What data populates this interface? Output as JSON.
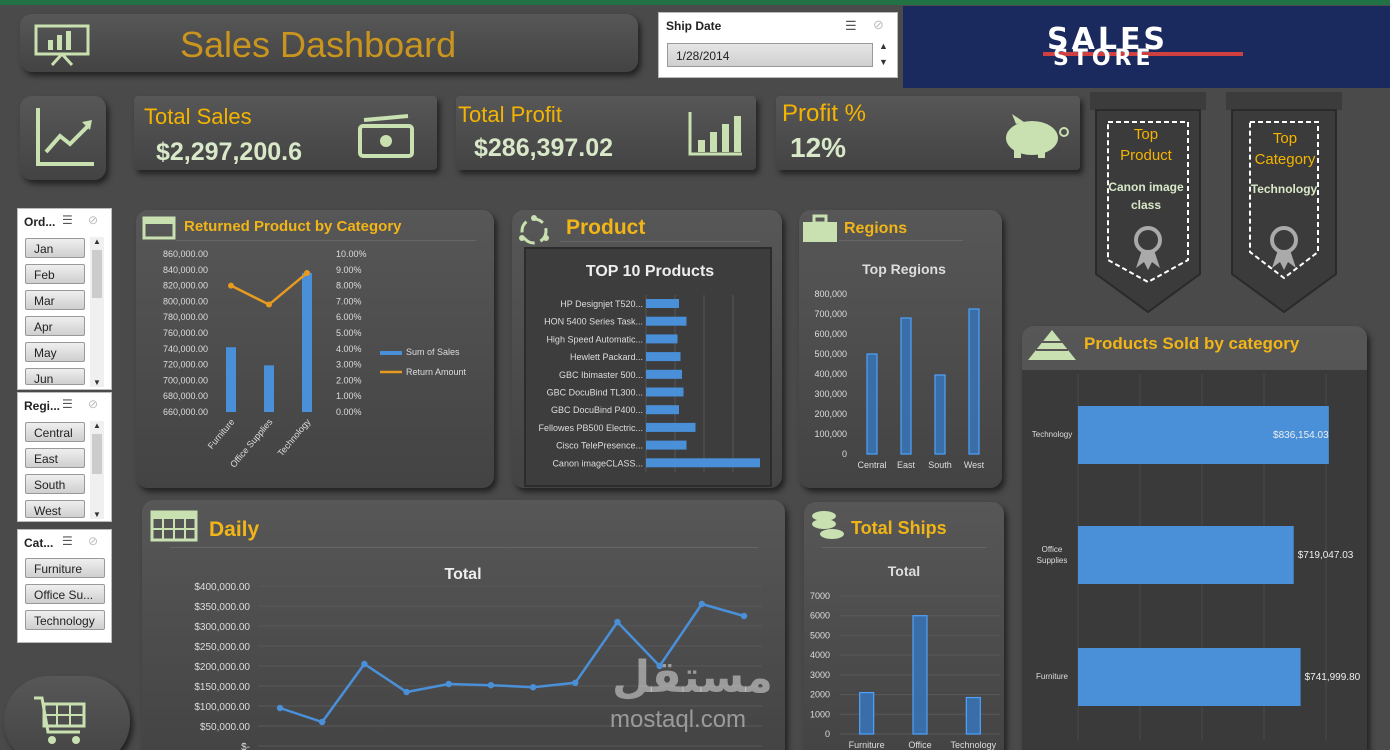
{
  "header": {
    "title": "Sales Dashboard"
  },
  "ship_date": {
    "label": "Ship Date",
    "value": "1/28/2014"
  },
  "logo": {
    "line1": "SALES",
    "line2": "STORE"
  },
  "kpis": [
    {
      "label": "Total Sales",
      "value": "$2,297,200.6"
    },
    {
      "label": "Total Profit",
      "value": "$286,397.02"
    },
    {
      "label": "Profit %",
      "value": "12%"
    }
  ],
  "top_product": {
    "title": "Top Product",
    "value": "Canon image class"
  },
  "top_category": {
    "title": "Top Category",
    "value": "Technology"
  },
  "slicers": {
    "order": {
      "label": "Ord...",
      "items": [
        "Jan",
        "Feb",
        "Mar",
        "Apr",
        "May",
        "Jun"
      ]
    },
    "region": {
      "label": "Regi...",
      "items": [
        "Central",
        "East",
        "South",
        "West"
      ]
    },
    "category": {
      "label": "Cat...",
      "items": [
        "Furniture",
        "Office Su...",
        "Technology"
      ]
    }
  },
  "sections": {
    "returned": "Returned Product by Category",
    "product": "Product",
    "regions": "Regions",
    "products_sold": "Products Sold by category",
    "daily": "Daily",
    "total_ships": "Total Ships"
  },
  "watermark": {
    "arabic": "مستقل",
    "latin": "mostaql.com"
  },
  "colors": {
    "accent": "#f4b400",
    "bar": "#4a90d9",
    "line": "#e69a1f",
    "panel": "#4f4f4f",
    "icon": "#c9e0b0"
  },
  "chart_data": [
    {
      "type": "bar",
      "title": "Returned Product by Category",
      "categories": [
        "Furniture",
        "Office Supplies",
        "Technology"
      ],
      "series": [
        {
          "name": "Sum of Sales",
          "values": [
            742000,
            719047,
            836154
          ],
          "axis": "left"
        },
        {
          "name": "Return Amount",
          "values": [
            0.08,
            0.068,
            0.088
          ],
          "axis": "right",
          "type": "line"
        }
      ],
      "ylim": [
        660000,
        860000
      ],
      "yticks": [
        "860,000.00",
        "840,000.00",
        "820,000.00",
        "800,000.00",
        "780,000.00",
        "760,000.00",
        "740,000.00",
        "720,000.00",
        "700,000.00",
        "680,000.00",
        "660,000.00"
      ],
      "y2ticks": [
        "10.00%",
        "9.00%",
        "8.00%",
        "7.00%",
        "6.00%",
        "5.00%",
        "4.00%",
        "3.00%",
        "2.00%",
        "1.00%",
        "0.00%"
      ],
      "legend_position": "right"
    },
    {
      "type": "bar",
      "orientation": "horizontal",
      "title": "TOP 10 Products",
      "categories": [
        "HP Designjet T520...",
        "HON 5400 Series Task...",
        "High Speed Automatic...",
        "Hewlett Packard...",
        "GBC Ibimaster 500...",
        "GBC DocuBind TL300...",
        "GBC DocuBind P400...",
        "Fellowes PB500 Electric...",
        "Cisco TelePresence...",
        "Canon imageCLASS..."
      ],
      "values": [
        22000,
        27000,
        21000,
        23000,
        24000,
        25000,
        22000,
        33000,
        27000,
        76000
      ]
    },
    {
      "type": "bar",
      "title": "Top Regions",
      "categories": [
        "Central",
        "East",
        "South",
        "West"
      ],
      "values": [
        500000,
        680000,
        395000,
        725000
      ],
      "ylim": [
        0,
        800000
      ],
      "yticks": [
        "800,000",
        "700,000",
        "600,000",
        "500,000",
        "400,000",
        "300,000",
        "200,000",
        "100,000",
        "0"
      ]
    },
    {
      "type": "bar",
      "orientation": "horizontal",
      "title": "Products Sold by category",
      "categories": [
        "Technology",
        "Office Supplies",
        "Furniture"
      ],
      "values": [
        836154.03,
        719047.03,
        741999.8
      ],
      "labels": [
        "$836,154.03",
        "$719,047.03",
        "$741,999.80"
      ]
    },
    {
      "type": "line",
      "title": "Total",
      "x": [
        1,
        2,
        3,
        4,
        5,
        6,
        7,
        8,
        9,
        10,
        11,
        12
      ],
      "values": [
        95000,
        60000,
        205000,
        135000,
        155000,
        152000,
        147000,
        158000,
        310000,
        200000,
        355000,
        325000
      ],
      "ylim": [
        0,
        400000
      ],
      "yticks": [
        "$400,000.00",
        "$350,000.00",
        "$300,000.00",
        "$250,000.00",
        "$200,000.00",
        "$150,000.00",
        "$100,000.00",
        "$50,000.00",
        "$-"
      ]
    },
    {
      "type": "bar",
      "title": "Total",
      "categories": [
        "Furniture",
        "Office",
        "Technology"
      ],
      "values": [
        2100,
        6000,
        1850
      ],
      "ylim": [
        0,
        7000
      ],
      "yticks": [
        "7000",
        "6000",
        "5000",
        "4000",
        "3000",
        "2000",
        "1000",
        "0"
      ]
    }
  ]
}
